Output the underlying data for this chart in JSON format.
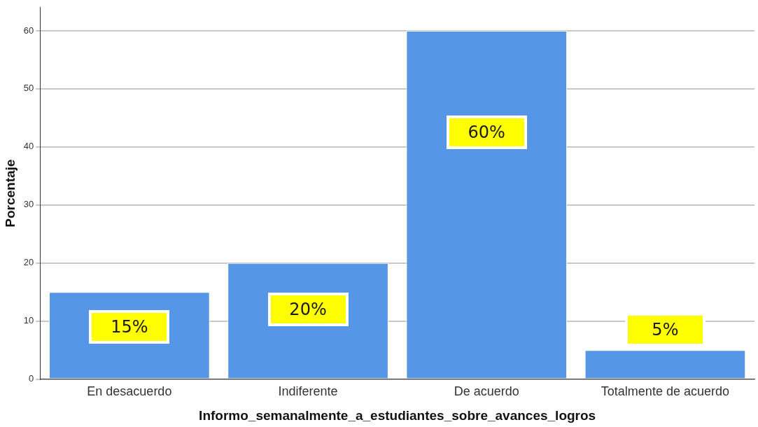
{
  "chart_data": {
    "type": "bar",
    "xlabel": "Informo_semanalmente_a_estudiantes_sobre_avances_logros",
    "ylabel": "Porcentaje",
    "categories": [
      "En desacuerdo",
      "Indiferente",
      "De acuerdo",
      "Totalmente de acuerdo"
    ],
    "values": [
      15,
      20,
      60,
      5
    ],
    "value_labels": [
      "15%",
      "20%",
      "60%",
      "5%"
    ],
    "color": "#5596e6",
    "ylim": [
      0,
      64
    ],
    "yticks": [
      0,
      10,
      20,
      30,
      40,
      50,
      60
    ],
    "grid": "y",
    "legend": false
  }
}
